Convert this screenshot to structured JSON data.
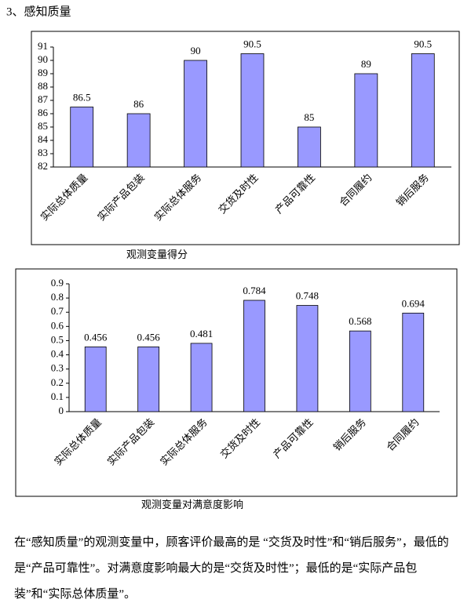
{
  "heading": "3、感知质量",
  "chart_data": [
    {
      "type": "bar",
      "title": "观测变量得分",
      "categories": [
        "实际总体质量",
        "实际产品包装",
        "实际总体服务",
        "交货及时性",
        "产品可靠性",
        "合同履约",
        "销后服务"
      ],
      "values": [
        86.5,
        86,
        90,
        90.5,
        85,
        89,
        90.5
      ],
      "color": "#9999ff",
      "ylim": [
        82,
        91
      ],
      "yticks": [
        82,
        83,
        84,
        85,
        86,
        87,
        88,
        89,
        90,
        91
      ]
    },
    {
      "type": "bar",
      "title": "观测变量对满意度影响",
      "categories": [
        "实际总体质量",
        "实际产品包装",
        "实际总体服务",
        "交货及时性",
        "产品可靠性",
        "销后服务",
        "合同履约"
      ],
      "values": [
        0.456,
        0.456,
        0.481,
        0.784,
        0.748,
        0.568,
        0.694
      ],
      "color": "#9999ff",
      "ylim": [
        0,
        0.9
      ],
      "yticks": [
        0,
        0.1,
        0.2,
        0.3,
        0.4,
        0.5,
        0.6,
        0.7,
        0.8,
        0.9
      ]
    }
  ],
  "paragraph": "在“感知质量”的观测变量中，顾客评价最高的是 “交货及时性”和“销后服务”，最低的是“产品可靠性”。对满意度影响最大的是“交货及时性”；最低的是“实际产品包装”和“实际总体质量”。"
}
